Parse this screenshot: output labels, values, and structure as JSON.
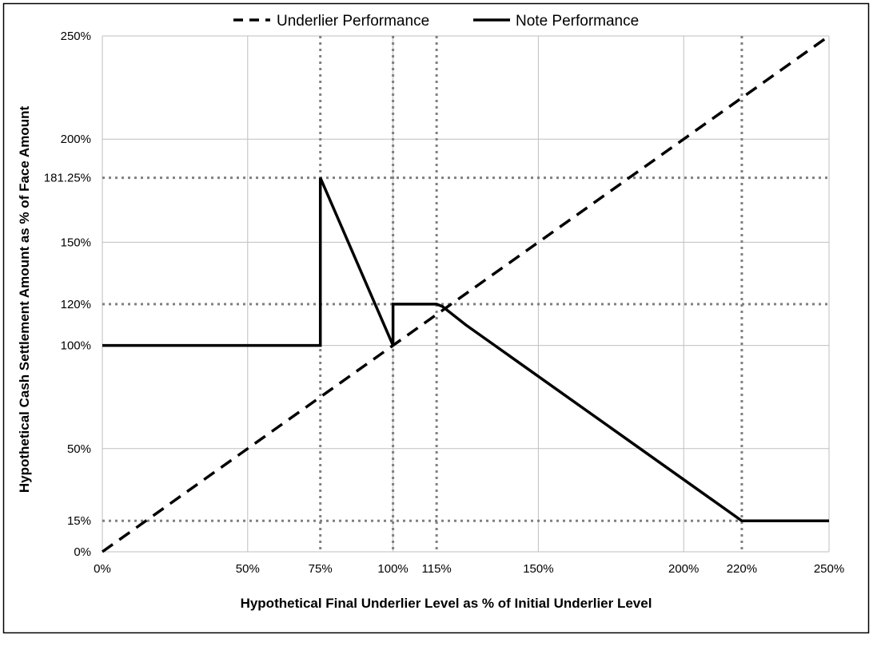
{
  "chart_data": {
    "type": "line",
    "title": "",
    "xlabel": "Hypothetical Final Underlier Level as % of Initial Underlier Level",
    "ylabel": "Hypothetical Cash Settlement Amount as % of Face Amount",
    "xlim": [
      0,
      250
    ],
    "ylim": [
      0,
      250
    ],
    "x_ticks": [
      {
        "value": 0,
        "label": "0%"
      },
      {
        "value": 50,
        "label": "50%"
      },
      {
        "value": 75,
        "label": "75%"
      },
      {
        "value": 100,
        "label": "100%"
      },
      {
        "value": 115,
        "label": "115%"
      },
      {
        "value": 150,
        "label": "150%"
      },
      {
        "value": 200,
        "label": "200%"
      },
      {
        "value": 220,
        "label": "220%"
      },
      {
        "value": 250,
        "label": "250%"
      }
    ],
    "y_ticks": [
      {
        "value": 0,
        "label": "0%"
      },
      {
        "value": 15,
        "label": "15%"
      },
      {
        "value": 50,
        "label": "50%"
      },
      {
        "value": 100,
        "label": "100%"
      },
      {
        "value": 120,
        "label": "120%"
      },
      {
        "value": 150,
        "label": "150%"
      },
      {
        "value": 181.25,
        "label": "181.25%"
      },
      {
        "value": 200,
        "label": "200%"
      },
      {
        "value": 250,
        "label": "250%"
      }
    ],
    "grid": true,
    "x_gridlines": [
      0,
      50,
      100,
      150,
      200,
      250
    ],
    "y_gridlines": [
      0,
      50,
      100,
      150,
      200,
      250
    ],
    "x_reference_lines": [
      75,
      100,
      115,
      220
    ],
    "y_reference_lines": [
      15,
      120,
      181.25
    ],
    "legend_position": "top",
    "series": [
      {
        "name": "Underlier Performance",
        "style": "dashed",
        "color": "#000000",
        "points": [
          [
            0,
            0
          ],
          [
            250,
            250
          ]
        ]
      },
      {
        "name": "Note Performance",
        "style": "solid",
        "color": "#000000",
        "points": [
          [
            0,
            100
          ],
          [
            75,
            100
          ],
          [
            75,
            181.25
          ],
          [
            100,
            100
          ],
          [
            100,
            120
          ],
          [
            115,
            120
          ],
          [
            117,
            118.9
          ],
          [
            125,
            110
          ],
          [
            220,
            15
          ],
          [
            250,
            15
          ]
        ]
      }
    ],
    "colors": {
      "grid": "#bfbfbf",
      "reference": "#808080",
      "border": "#000000"
    }
  }
}
